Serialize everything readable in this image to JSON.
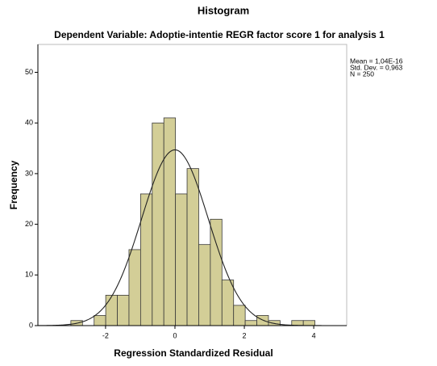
{
  "chart_data": {
    "type": "histogram",
    "title": "Histogram",
    "subtitle": "Dependent Variable: Adoptie-intentie REGR factor score   1 for analysis 1",
    "x_label": "Regression Standardized Residual",
    "y_label": "Frequency",
    "bins": [
      -3.0,
      -2.665,
      -2.33,
      -1.995,
      -1.66,
      -1.325,
      -0.99,
      -0.655,
      -0.32,
      0.015,
      0.35,
      0.685,
      1.02,
      1.355,
      1.69,
      2.025,
      2.36,
      2.695,
      3.03,
      3.365,
      3.7,
      4.035
    ],
    "values": [
      1,
      0,
      2,
      6,
      6,
      15,
      26,
      40,
      41,
      26,
      31,
      16,
      21,
      9,
      4,
      1,
      2,
      1,
      0,
      1,
      1
    ],
    "color": "#d3ce97",
    "edge_color": "#3a3a3a",
    "curve_color": "#222222",
    "mean": {
      "value": 1.04e-16,
      "label": "Mean = 1,04E-16"
    },
    "std_dev": {
      "value": 0.963,
      "label": "Std. Dev. = 0,963"
    },
    "n": {
      "value": 250,
      "label": "N = 250"
    },
    "xlim": [
      -3.95,
      4.95
    ],
    "ylim": [
      0,
      55.5
    ],
    "xticks": [
      -2,
      0,
      2,
      4
    ],
    "yticks": [
      0,
      10,
      20,
      30,
      40,
      50
    ]
  }
}
